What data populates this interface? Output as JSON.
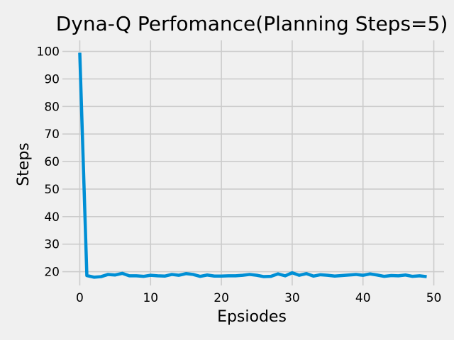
{
  "chart_data": {
    "type": "line",
    "title": "Dyna-Q Perfomance(Planning Steps=5)",
    "xlabel": "Epsiodes",
    "ylabel": "Steps",
    "xlim": [
      -2.45,
      51.45
    ],
    "ylim": [
      15,
      104
    ],
    "xticks": [
      0,
      10,
      20,
      30,
      40,
      50
    ],
    "yticks": [
      20,
      30,
      40,
      50,
      60,
      70,
      80,
      90,
      100
    ],
    "grid": true,
    "colors": {
      "line": "#008fd5",
      "background": "#f0f0f0",
      "grid": "#cbcbcb"
    },
    "series": [
      {
        "x": [
          0,
          1,
          2,
          3,
          4,
          5,
          6,
          7,
          8,
          9,
          10,
          11,
          12,
          13,
          14,
          15,
          16,
          17,
          18,
          19,
          20,
          21,
          22,
          23,
          24,
          25,
          26,
          27,
          28,
          29,
          30,
          31,
          32,
          33,
          34,
          35,
          36,
          37,
          38,
          39,
          40,
          41,
          42,
          43,
          44,
          45,
          46,
          47,
          48,
          49
        ],
        "values": [
          99.5,
          18.6,
          18.0,
          18.2,
          19.0,
          18.8,
          19.4,
          18.5,
          18.5,
          18.3,
          18.7,
          18.5,
          18.4,
          19.0,
          18.7,
          19.3,
          19.0,
          18.3,
          18.8,
          18.4,
          18.4,
          18.5,
          18.5,
          18.7,
          19.0,
          18.7,
          18.2,
          18.3,
          19.2,
          18.5,
          19.6,
          18.7,
          19.3,
          18.4,
          18.9,
          18.7,
          18.4,
          18.6,
          18.8,
          19.0,
          18.7,
          19.2,
          18.8,
          18.3,
          18.6,
          18.5,
          18.8,
          18.3,
          18.5,
          18.2
        ]
      }
    ]
  }
}
